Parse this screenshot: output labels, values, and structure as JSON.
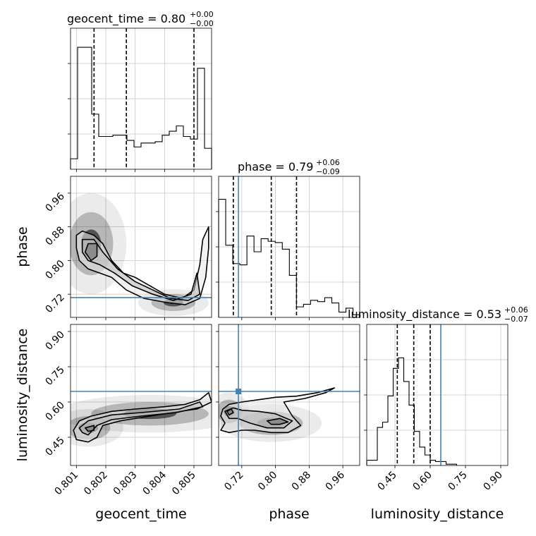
{
  "chart_data": {
    "type": "corner",
    "parameters": [
      {
        "name": "geocent_time",
        "title": {
          "main": "geocent_time = 0.80",
          "plus": "+0.00",
          "minus": "−0.00"
        },
        "range": [
          0.8008,
          0.8056
        ],
        "ticks": [
          0.801,
          0.802,
          0.803,
          0.804,
          0.805
        ],
        "tick_labels": [
          "0.801",
          "0.802",
          "0.803",
          "0.804",
          "0.805"
        ],
        "quantiles": [
          0.8016,
          0.8027,
          0.805
        ],
        "histogram": {
          "edges_start": 0.8008,
          "bin_width": 0.00024,
          "counts": [
            0.08,
            0.93,
            0.93,
            0.42,
            0.25,
            0.25,
            0.26,
            0.26,
            0.22,
            0.17,
            0.2,
            0.2,
            0.21,
            0.26,
            0.29,
            0.33,
            0.25,
            0.23,
            0.77,
            0.16
          ]
        }
      },
      {
        "name": "phase",
        "title": {
          "main": "phase = 0.79",
          "plus": "+0.06",
          "minus": "−0.09"
        },
        "range": [
          0.665,
          1.0
        ],
        "ticks": [
          0.72,
          0.8,
          0.88,
          0.96
        ],
        "tick_labels": [
          "0.72",
          "0.80",
          "0.88",
          "0.96"
        ],
        "quantiles": [
          0.7,
          0.79,
          0.85
        ],
        "truth": 0.712,
        "histogram": {
          "edges_start": 0.665,
          "bin_width": 0.0168,
          "counts": [
            0.9,
            0.55,
            0.41,
            0.4,
            0.62,
            0.5,
            0.6,
            0.58,
            0.57,
            0.52,
            0.32,
            0.08,
            0.1,
            0.13,
            0.12,
            0.15,
            0.11,
            0.04,
            0.07,
            0.02
          ]
        }
      },
      {
        "name": "luminosity_distance",
        "title": {
          "main": "luminosity_distance = 0.53",
          "plus": "+0.06",
          "minus": "−0.07"
        },
        "range": [
          0.33,
          0.93
        ],
        "ticks": [
          0.45,
          0.6,
          0.75,
          0.9
        ],
        "tick_labels": [
          "0.45",
          "0.60",
          "0.75",
          "0.90"
        ],
        "quantiles": [
          0.46,
          0.53,
          0.6
        ],
        "truth": 0.645,
        "histogram": {
          "edges_start": 0.33,
          "bin_width": 0.0225,
          "counts": [
            0.04,
            0.04,
            0.29,
            0.33,
            0.53,
            0.74,
            0.82,
            0.64,
            0.46,
            0.26,
            0.14,
            0.08,
            0.04,
            0.03,
            0.03,
            0.01,
            0.01
          ]
        }
      }
    ],
    "joint": [
      {
        "x": "geocent_time",
        "y": "phase",
        "truth_y": 0.712,
        "density_modes": [
          {
            "x": 0.8015,
            "y": 0.84,
            "sx": 0.0003,
            "sy": 0.03
          },
          {
            "x": 0.8043,
            "y": 0.7,
            "sx": 0.0003,
            "sy": 0.008
          }
        ],
        "contours": [
          [
            [
              0.801,
              0.86
            ],
            [
              0.8012,
              0.87
            ],
            [
              0.8016,
              0.86
            ],
            [
              0.8019,
              0.84
            ],
            [
              0.8022,
              0.8
            ],
            [
              0.8026,
              0.77
            ],
            [
              0.803,
              0.76
            ],
            [
              0.8035,
              0.74
            ],
            [
              0.804,
              0.72
            ],
            [
              0.8046,
              0.71
            ],
            [
              0.805,
              0.73
            ],
            [
              0.8052,
              0.79
            ],
            [
              0.8053,
              0.85
            ],
            [
              0.8055,
              0.88
            ],
            [
              0.8055,
              0.83
            ],
            [
              0.8054,
              0.76
            ],
            [
              0.8052,
              0.71
            ],
            [
              0.8047,
              0.695
            ],
            [
              0.8041,
              0.7
            ],
            [
              0.8033,
              0.71
            ],
            [
              0.8027,
              0.73
            ],
            [
              0.8022,
              0.76
            ],
            [
              0.8018,
              0.77
            ],
            [
              0.8014,
              0.78
            ],
            [
              0.8011,
              0.8
            ],
            [
              0.801,
              0.83
            ]
          ],
          [
            [
              0.8012,
              0.85
            ],
            [
              0.8016,
              0.85
            ],
            [
              0.8019,
              0.82
            ],
            [
              0.8024,
              0.78
            ],
            [
              0.803,
              0.75
            ],
            [
              0.8036,
              0.73
            ],
            [
              0.8042,
              0.71
            ],
            [
              0.8048,
              0.705
            ],
            [
              0.8052,
              0.72
            ],
            [
              0.8051,
              0.77
            ],
            [
              0.8049,
              0.72
            ],
            [
              0.8043,
              0.705
            ],
            [
              0.8036,
              0.72
            ],
            [
              0.8029,
              0.74
            ],
            [
              0.8023,
              0.77
            ],
            [
              0.8018,
              0.79
            ],
            [
              0.8014,
              0.8
            ],
            [
              0.8012,
              0.82
            ]
          ],
          [
            [
              0.8014,
              0.84
            ],
            [
              0.8017,
              0.84
            ],
            [
              0.8017,
              0.81
            ],
            [
              0.8015,
              0.8
            ],
            [
              0.8013,
              0.82
            ]
          ]
        ]
      },
      {
        "x": "geocent_time",
        "y": "luminosity_distance",
        "truth_y": 0.645,
        "density_modes": [
          {
            "x": 0.8014,
            "y": 0.49,
            "sx": 0.0003,
            "sy": 0.02
          },
          {
            "x": 0.8035,
            "y": 0.55,
            "sx": 0.0008,
            "sy": 0.02
          }
        ],
        "contours": [
          [
            [
              0.8009,
              0.48
            ],
            [
              0.8011,
              0.52
            ],
            [
              0.8015,
              0.54
            ],
            [
              0.8022,
              0.56
            ],
            [
              0.803,
              0.57
            ],
            [
              0.804,
              0.58
            ],
            [
              0.8047,
              0.59
            ],
            [
              0.8052,
              0.61
            ],
            [
              0.8055,
              0.64
            ],
            [
              0.8056,
              0.6
            ],
            [
              0.8051,
              0.57
            ],
            [
              0.8045,
              0.56
            ],
            [
              0.8035,
              0.54
            ],
            [
              0.8025,
              0.52
            ],
            [
              0.8019,
              0.5
            ],
            [
              0.8017,
              0.45
            ],
            [
              0.8014,
              0.43
            ],
            [
              0.801,
              0.44
            ]
          ],
          [
            [
              0.8011,
              0.49
            ],
            [
              0.8014,
              0.52
            ],
            [
              0.8022,
              0.545
            ],
            [
              0.8032,
              0.555
            ],
            [
              0.8045,
              0.57
            ],
            [
              0.8052,
              0.6
            ],
            [
              0.8053,
              0.58
            ],
            [
              0.8044,
              0.555
            ],
            [
              0.8032,
              0.54
            ],
            [
              0.8022,
              0.525
            ],
            [
              0.8017,
              0.5
            ],
            [
              0.8014,
              0.46
            ],
            [
              0.8012,
              0.47
            ]
          ],
          [
            [
              0.8013,
              0.49
            ],
            [
              0.8016,
              0.5
            ],
            [
              0.8016,
              0.48
            ],
            [
              0.8014,
              0.475
            ]
          ]
        ]
      },
      {
        "x": "phase",
        "y": "luminosity_distance",
        "truth_x": 0.712,
        "truth_y": 0.645,
        "density_modes": [
          {
            "x": 0.69,
            "y": 0.56,
            "sx": 0.012,
            "sy": 0.02
          },
          {
            "x": 0.79,
            "y": 0.51,
            "sx": 0.03,
            "sy": 0.02
          }
        ],
        "contours": [
          [
            [
              0.675,
              0.57
            ],
            [
              0.69,
              0.59
            ],
            [
              0.72,
              0.6
            ],
            [
              0.76,
              0.61
            ],
            [
              0.8,
              0.62
            ],
            [
              0.85,
              0.625
            ],
            [
              0.9,
              0.64
            ],
            [
              0.94,
              0.66
            ],
            [
              0.92,
              0.64
            ],
            [
              0.87,
              0.615
            ],
            [
              0.82,
              0.6
            ],
            [
              0.84,
              0.54
            ],
            [
              0.86,
              0.5
            ],
            [
              0.83,
              0.47
            ],
            [
              0.79,
              0.47
            ],
            [
              0.75,
              0.48
            ],
            [
              0.72,
              0.48
            ],
            [
              0.69,
              0.47
            ],
            [
              0.67,
              0.48
            ],
            [
              0.68,
              0.51
            ],
            [
              0.67,
              0.54
            ]
          ],
          [
            [
              0.68,
              0.56
            ],
            [
              0.7,
              0.575
            ],
            [
              0.72,
              0.565
            ],
            [
              0.76,
              0.56
            ],
            [
              0.8,
              0.55
            ],
            [
              0.84,
              0.52
            ],
            [
              0.82,
              0.49
            ],
            [
              0.78,
              0.49
            ],
            [
              0.74,
              0.51
            ],
            [
              0.71,
              0.53
            ],
            [
              0.69,
              0.53
            ]
          ],
          [
            [
              0.685,
              0.56
            ],
            [
              0.695,
              0.57
            ],
            [
              0.7,
              0.555
            ],
            [
              0.69,
              0.545
            ]
          ],
          [
            [
              0.78,
              0.52
            ],
            [
              0.81,
              0.53
            ],
            [
              0.83,
              0.515
            ],
            [
              0.81,
              0.505
            ],
            [
              0.79,
              0.505
            ]
          ]
        ]
      }
    ],
    "colors": {
      "truth": "#4682b4",
      "contour": "#000000",
      "grid": "#c8c8c8",
      "density": "#000000"
    }
  }
}
